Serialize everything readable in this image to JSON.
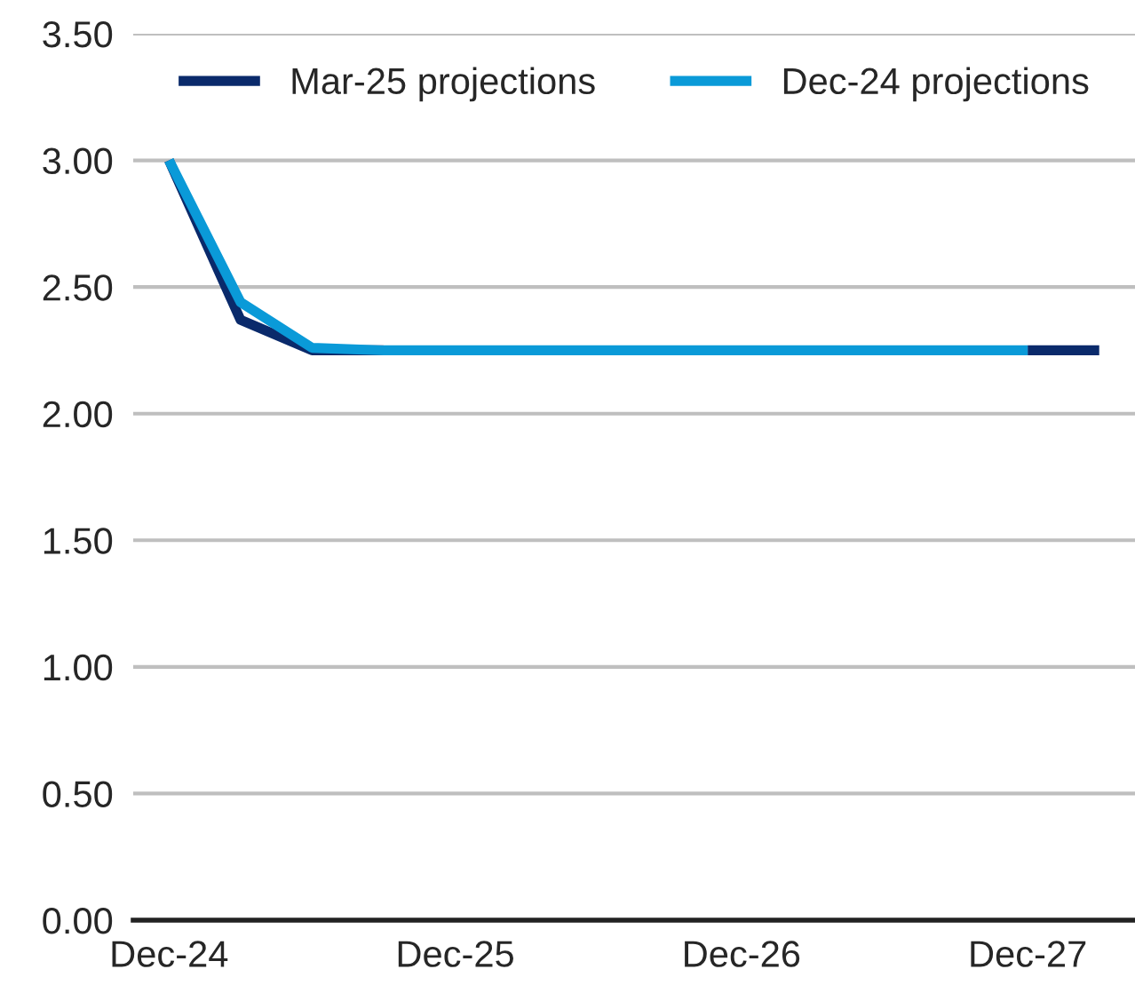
{
  "chart_data": {
    "type": "line",
    "categories": [
      "Dec-24",
      null,
      null,
      null,
      "Dec-25",
      null,
      null,
      null,
      "Dec-26",
      null,
      null,
      null,
      "Dec-27",
      null
    ],
    "series": [
      {
        "name": "Mar-25 projections",
        "color": "#0a2a6b",
        "values": [
          3.0,
          2.37,
          2.25,
          2.25,
          null,
          null,
          null,
          null,
          null,
          null,
          null,
          null,
          2.25,
          2.25
        ]
      },
      {
        "name": "Dec-24 projections",
        "color": "#0a9ad8",
        "values": [
          3.0,
          2.44,
          2.26,
          2.25,
          2.25,
          2.25,
          2.25,
          2.25,
          2.25,
          2.25,
          2.25,
          2.25,
          2.25,
          null
        ]
      }
    ],
    "ylim": [
      0,
      3.5
    ],
    "yticks": [
      {
        "value": 0,
        "label": "0.00"
      },
      {
        "value": 0.5,
        "label": "0.50"
      },
      {
        "value": 1,
        "label": "1.00"
      },
      {
        "value": 1.5,
        "label": "1.50"
      },
      {
        "value": 2,
        "label": "2.00"
      },
      {
        "value": 2.5,
        "label": "2.50"
      },
      {
        "value": 3,
        "label": "3.00"
      },
      {
        "value": 3.5,
        "label": "3.50"
      }
    ],
    "grid": "y",
    "legend": "top",
    "line_style": "solid",
    "marker": "none"
  }
}
